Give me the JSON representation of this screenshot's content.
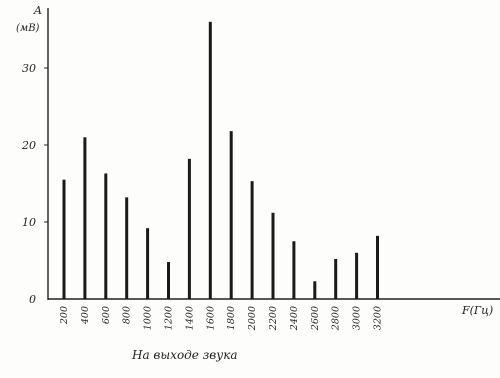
{
  "chart_data": {
    "type": "bar",
    "ylabel": "A",
    "yunit": "(мВ)",
    "xlabel": "F(Гц)",
    "caption": "На выходе звука",
    "categories": [
      "200",
      "400",
      "600",
      "800",
      "1000",
      "1200",
      "1400",
      "1600",
      "1800",
      "2000",
      "2200",
      "2400",
      "2600",
      "2800",
      "3000",
      "3200"
    ],
    "values": [
      15.5,
      21,
      16.3,
      13.2,
      9.2,
      4.8,
      18.2,
      36,
      21.8,
      15.3,
      11.2,
      7.5,
      2.3,
      5.2,
      6,
      8.2
    ],
    "yticks": [
      0,
      10,
      20,
      30
    ],
    "ylim": [
      0,
      38
    ],
    "colors": {
      "bar": "#1a1a1a",
      "axis": "#222222"
    }
  }
}
